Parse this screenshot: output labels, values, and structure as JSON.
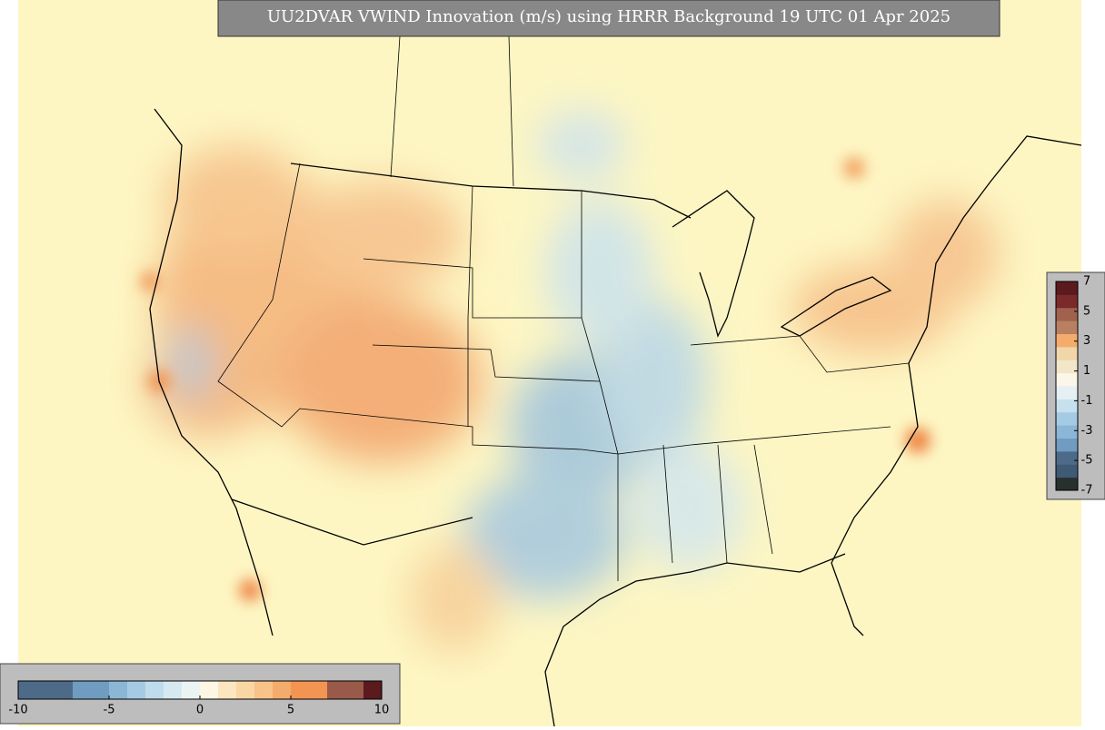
{
  "title": "UU2DVAR VWIND Innovation (m/s) using HRRR Background 19 UTC 01 Apr 2025",
  "colorbar_horizontal": {
    "range": [
      -10,
      10
    ],
    "ticks": [
      -10,
      -5,
      0,
      5,
      10
    ],
    "colors": [
      "#4d6a88",
      "#4d6a88",
      "#4d6a88",
      "#6f9cc0",
      "#6f9cc0",
      "#8bb6d6",
      "#a5cbe4",
      "#bfdcec",
      "#d6e9f1",
      "#ecf4f3",
      "#fdf7e4",
      "#fbe6c0",
      "#f9d7a4",
      "#f7c388",
      "#f4ac6c",
      "#f29452",
      "#f29452",
      "#9a5a4a",
      "#9a5a4a",
      "#5a1a1e"
    ]
  },
  "colorbar_vertical": {
    "range": [
      -7,
      7
    ],
    "ticks": [
      7,
      5,
      3,
      1,
      -1,
      -3,
      -5,
      -7
    ],
    "colors": [
      "#28302e",
      "#3f5a74",
      "#4d6a88",
      "#6f9cc0",
      "#8bb6d6",
      "#a5cbe4",
      "#c6e0ee",
      "#e4f0f4",
      "#fbf6e8",
      "#f2e6c8",
      "#f0d6a8",
      "#f4ac6c",
      "#b88060",
      "#a0624c",
      "#7a2a2a",
      "#5a1a1e"
    ]
  }
}
